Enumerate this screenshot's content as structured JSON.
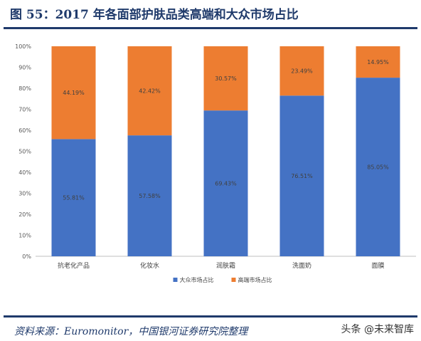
{
  "header": {
    "title": "图 55：2017 年各面部护肤品类高端和大众市场占比"
  },
  "footer": {
    "source": "资料来源：Euromonitor，中国银河证券研究院整理",
    "watermark": "头条 @未来智库"
  },
  "chart_data": {
    "type": "bar",
    "stacked": true,
    "categories": [
      "抗老化产品",
      "化妆水",
      "润肤霜",
      "洗面奶",
      "面膜"
    ],
    "series": [
      {
        "name": "大众市场占比",
        "values": [
          55.81,
          57.58,
          69.43,
          76.51,
          85.05
        ],
        "labels": [
          "55.81%",
          "57.58%",
          "69.43%",
          "76.51%",
          "85.05%"
        ],
        "color": "#4472c4"
      },
      {
        "name": "高端市场占比",
        "values": [
          44.19,
          42.42,
          30.57,
          23.49,
          14.95
        ],
        "labels": [
          "44.19%",
          "42.42%",
          "30.57%",
          "23.49%",
          "14.95%"
        ],
        "color": "#ed7d31"
      }
    ],
    "yticks": [
      "0%",
      "10%",
      "20%",
      "30%",
      "40%",
      "50%",
      "60%",
      "70%",
      "80%",
      "90%",
      "100%"
    ],
    "ylim": [
      0,
      100
    ],
    "grid": false,
    "legend": "bottom"
  }
}
